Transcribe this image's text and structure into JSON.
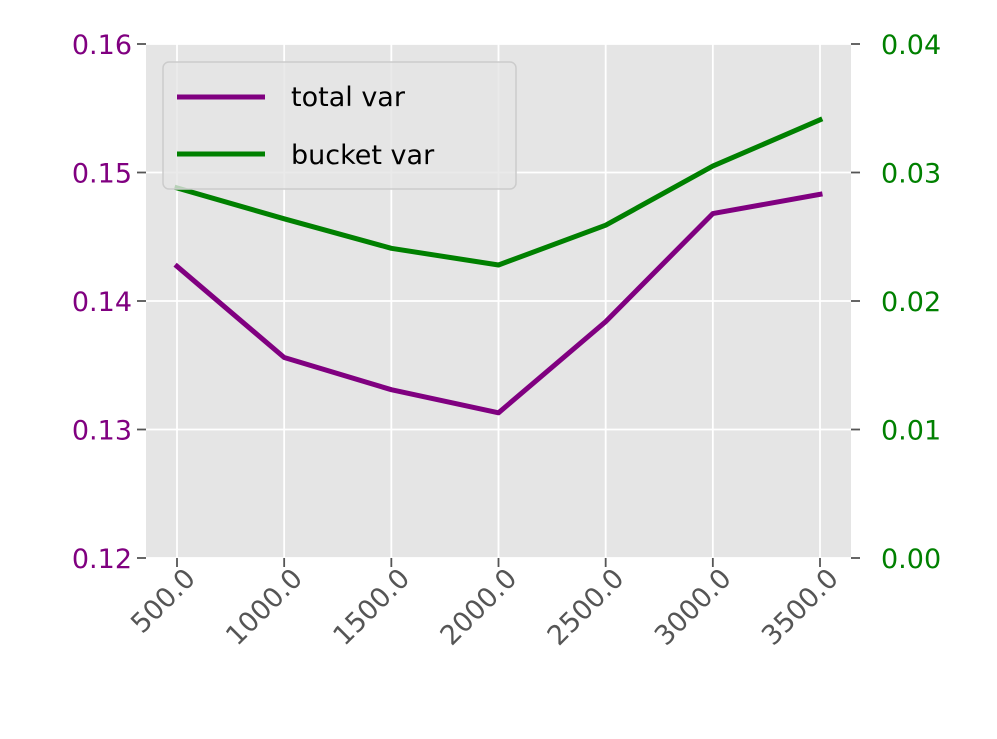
{
  "chart_data": {
    "type": "line",
    "x": [
      500.0,
      1000.0,
      1500.0,
      2000.0,
      2500.0,
      3000.0,
      3500.0
    ],
    "x_tick_labels": [
      "500.0",
      "1000.0",
      "1500.0",
      "2000.0",
      "2500.0",
      "3000.0",
      "3500.0"
    ],
    "series": [
      {
        "name": "total var",
        "axis": "left",
        "color": "#800080",
        "values": [
          0.1427,
          0.1356,
          0.1331,
          0.1313,
          0.1384,
          0.1468,
          0.1483
        ]
      },
      {
        "name": "bucket var",
        "axis": "right",
        "color": "#008000",
        "values": [
          0.0288,
          0.0264,
          0.0241,
          0.0228,
          0.0259,
          0.0305,
          0.0341
        ]
      }
    ],
    "y_left": {
      "ylim": [
        0.12,
        0.16
      ],
      "ticks": [
        0.12,
        0.13,
        0.14,
        0.15,
        0.16
      ],
      "tick_labels": [
        "0.12",
        "0.13",
        "0.14",
        "0.15",
        "0.16"
      ],
      "color": "#800080"
    },
    "y_right": {
      "ylim": [
        0.0,
        0.04
      ],
      "ticks": [
        0.0,
        0.01,
        0.02,
        0.03,
        0.04
      ],
      "tick_labels": [
        "0.00",
        "0.01",
        "0.02",
        "0.03",
        "0.04"
      ],
      "color": "#008000"
    },
    "title": "",
    "xlabel": "",
    "ylabel": "",
    "grid": true,
    "legend_position": "upper-left",
    "background": "#e5e5e5",
    "x_tick_color": "#555555"
  }
}
